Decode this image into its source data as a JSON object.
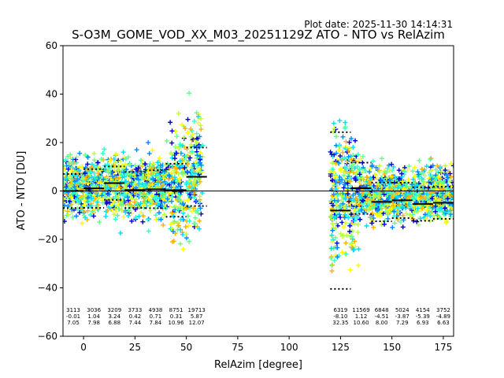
{
  "plot_date": "Plot date: 2025-11-30 14:14:31",
  "chart_data": {
    "type": "scatter",
    "title": "S-O3M_GOME_VOD_XX_M03_20251129Z ATO - NTO vs RelAzim",
    "xlabel": "RelAzim [degree]",
    "ylabel": "ATO - NTO [DU]",
    "xlim": [
      -10,
      180
    ],
    "ylim": [
      -60,
      60
    ],
    "xticks": [
      0,
      25,
      50,
      75,
      100,
      125,
      150,
      175
    ],
    "yticks": [
      -60,
      -40,
      -20,
      0,
      20,
      40,
      60
    ],
    "colors": [
      "#0000cc",
      "#0088ff",
      "#00dcff",
      "#33ffcc",
      "#66ff88",
      "#b8ff44",
      "#ffff00",
      "#ffb000"
    ],
    "reference_line": 0,
    "clusters": [
      {
        "x_range": [
          -10,
          58
        ],
        "y_center": 2,
        "spread": 16
      },
      {
        "x_range": [
          120,
          180
        ],
        "y_center": -1,
        "spread": 14
      }
    ],
    "bins": [
      {
        "x_start": -10,
        "x_end": 0,
        "count": "3113",
        "mean": "-0.01",
        "std": "7.05"
      },
      {
        "x_start": 0,
        "x_end": 10,
        "count": "3036",
        "mean": "1.04",
        "std": "7.98"
      },
      {
        "x_start": 10,
        "x_end": 20,
        "count": "3209",
        "mean": "3.24",
        "std": "6.88"
      },
      {
        "x_start": 20,
        "x_end": 30,
        "count": "3733",
        "mean": "0.42",
        "std": "7.44"
      },
      {
        "x_start": 30,
        "x_end": 40,
        "count": "4938",
        "mean": "0.71",
        "std": "7.84"
      },
      {
        "x_start": 40,
        "x_end": 50,
        "count": "8751",
        "mean": "0.31",
        "std": "10.96"
      },
      {
        "x_start": 50,
        "x_end": 60,
        "count": "19713",
        "mean": "5.87",
        "std": "12.07"
      },
      {
        "x_start": 120,
        "x_end": 130,
        "count": "6319",
        "mean": "-8.10",
        "std": "32.35"
      },
      {
        "x_start": 130,
        "x_end": 140,
        "count": "11569",
        "mean": "1.12",
        "std": "10.60"
      },
      {
        "x_start": 140,
        "x_end": 150,
        "count": "6848",
        "mean": "-4.51",
        "std": "8.00"
      },
      {
        "x_start": 150,
        "x_end": 160,
        "count": "5024",
        "mean": "-3.87",
        "std": "7.29"
      },
      {
        "x_start": 160,
        "x_end": 170,
        "count": "4154",
        "mean": "-5.39",
        "std": "6.93"
      },
      {
        "x_start": 170,
        "x_end": 180,
        "count": "3752",
        "mean": "-4.89",
        "std": "6.63"
      }
    ]
  }
}
